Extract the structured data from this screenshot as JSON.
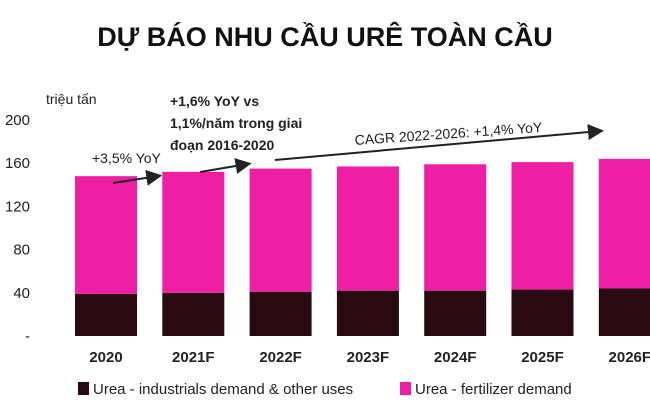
{
  "chart_data": {
    "type": "bar",
    "stacked": true,
    "title": "DỰ BÁO NHU CẦU URÊ TOÀN CẦU",
    "ylabel": "triệu tấn",
    "xlabel": "",
    "ylim": [
      0,
      200
    ],
    "yticks": [
      "-",
      "40",
      "80",
      "120",
      "160",
      "200"
    ],
    "categories": [
      "2020",
      "2021F",
      "2022F",
      "2023F",
      "2024F",
      "2025F",
      "2026F"
    ],
    "series": [
      {
        "name": "Urea - industrials demand & other uses",
        "color": "#2a0a12",
        "values": [
          39,
          40,
          41,
          42,
          42,
          43,
          44
        ]
      },
      {
        "name": "Urea - fertilizer demand",
        "color": "#ee1fa3",
        "values": [
          109,
          112,
          114,
          115,
          117,
          118,
          120
        ]
      }
    ],
    "legend_position": "bottom",
    "grid": false,
    "annotations": [
      {
        "text": "+3,5% YoY",
        "lines": [
          "+3,5% YoY"
        ]
      },
      {
        "text": "+1,6% YoY vs 1,1%/năm trong giai đoạn 2016-2020",
        "lines": [
          "+1,6% YoY vs",
          "1,1%/năm trong giai",
          "đoạn 2016-2020"
        ]
      },
      {
        "text": "CAGR 2022-2026: +1,4% YoY",
        "lines": [
          "CAGR 2022-2026: +1,4% YoY"
        ]
      }
    ]
  }
}
